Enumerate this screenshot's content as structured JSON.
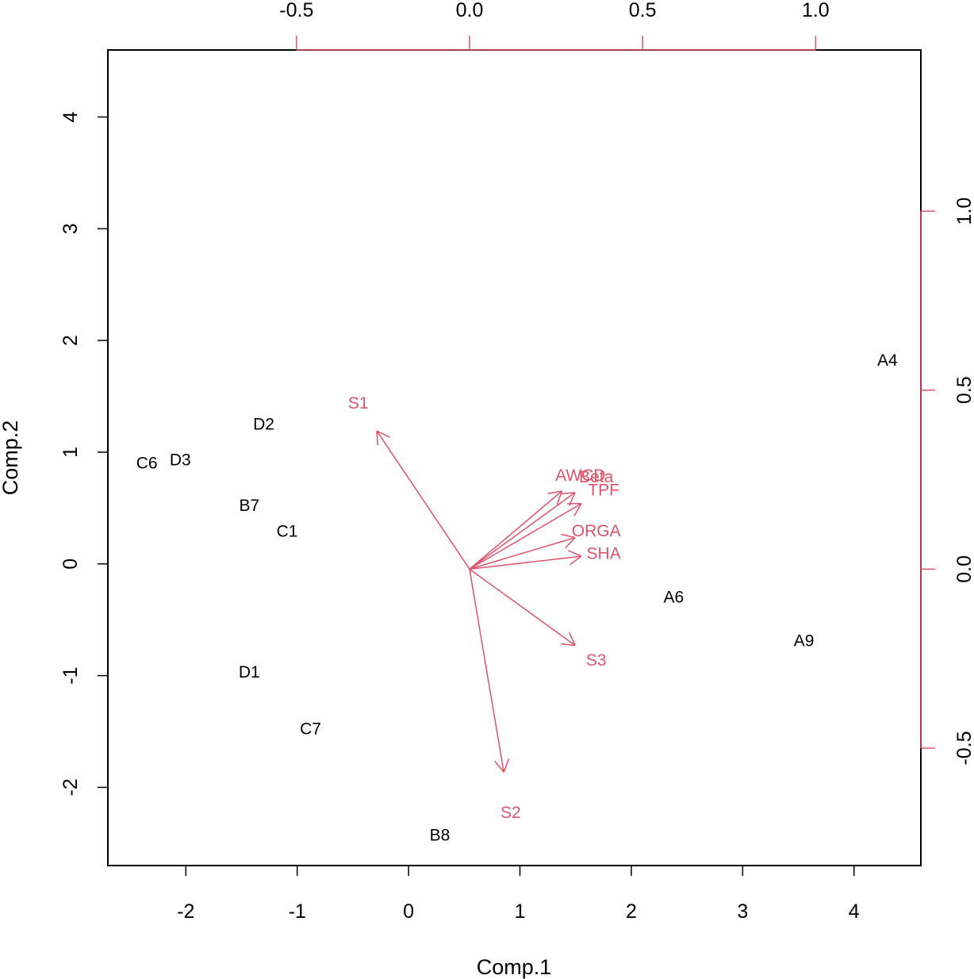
{
  "chart_data": {
    "type": "scatter",
    "subtype": "biplot",
    "title": "",
    "xlabel": "Comp.1",
    "ylabel": "Comp.2",
    "colors": {
      "scores": "#000000",
      "loadings": "#df536b"
    },
    "axes": {
      "bottom": {
        "lim": [
          -2.7,
          4.6
        ],
        "ticks": [
          "-2",
          "-1",
          "0",
          "1",
          "2",
          "3",
          "4"
        ]
      },
      "left": {
        "lim": [
          -2.7,
          4.6
        ],
        "ticks": [
          "-2",
          "-1",
          "0",
          "1",
          "2",
          "3",
          "4"
        ]
      },
      "top": {
        "lim": [
          -1.045,
          1.304
        ],
        "ticks": [
          "-0.5",
          "0.0",
          "0.5",
          "1.0"
        ]
      },
      "right": {
        "lim": [
          -0.828,
          1.45
        ],
        "ticks": [
          "-0.5",
          "0.0",
          "0.5",
          "1.0"
        ]
      }
    },
    "scores": [
      {
        "label": "A4",
        "x": 4.3,
        "y": 1.82
      },
      {
        "label": "D2",
        "x": -1.3,
        "y": 1.25
      },
      {
        "label": "C6",
        "x": -2.35,
        "y": 0.9
      },
      {
        "label": "D3",
        "x": -2.05,
        "y": 0.93
      },
      {
        "label": "B7",
        "x": -1.43,
        "y": 0.52
      },
      {
        "label": "C1",
        "x": -1.09,
        "y": 0.29
      },
      {
        "label": "A6",
        "x": 2.38,
        "y": -0.3
      },
      {
        "label": "A9",
        "x": 3.55,
        "y": -0.69
      },
      {
        "label": "D1",
        "x": -1.43,
        "y": -0.97
      },
      {
        "label": "C7",
        "x": -0.88,
        "y": -1.48
      },
      {
        "label": "B8",
        "x": 0.28,
        "y": -2.43
      }
    ],
    "loadings": [
      {
        "label": "S1",
        "x": -0.268,
        "y": 0.386
      },
      {
        "label": "AWCD",
        "x": 0.267,
        "y": 0.218
      },
      {
        "label": "Beta",
        "x": 0.305,
        "y": 0.214
      },
      {
        "label": "TPF",
        "x": 0.323,
        "y": 0.183
      },
      {
        "label": "ORGA",
        "x": 0.305,
        "y": 0.088
      },
      {
        "label": "SHA",
        "x": 0.323,
        "y": 0.036
      },
      {
        "label": "S3",
        "x": 0.305,
        "y": -0.213
      },
      {
        "label": "S2",
        "x": 0.099,
        "y": -0.567
      }
    ]
  }
}
